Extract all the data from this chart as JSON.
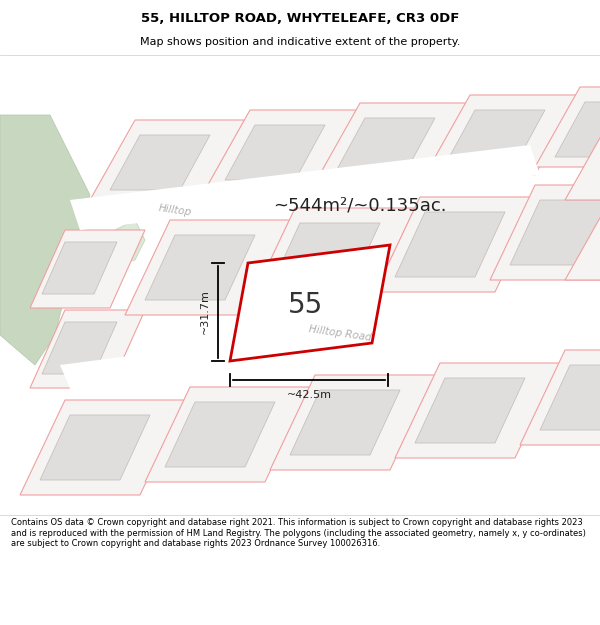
{
  "title_line1": "55, HILLTOP ROAD, WHYTELEAFE, CR3 0DF",
  "title_line2": "Map shows position and indicative extent of the property.",
  "area_text": "~544m²/~0.135ac.",
  "property_number": "55",
  "dim_width": "~42.5m",
  "dim_height": "~31.7m",
  "road_label1": "Hilltop",
  "road_label2": "Hilltop Road",
  "footer_text": "Contains OS data © Crown copyright and database right 2021. This information is subject to Crown copyright and database rights 2023 and is reproduced with the permission of HM Land Registry. The polygons (including the associated geometry, namely x, y co-ordinates) are subject to Crown copyright and database rights 2023 Ordnance Survey 100026316.",
  "map_bg": "#f8f7f5",
  "plot_fill": "#f5f4f2",
  "plot_edge": "#f0a0a0",
  "building_fill": "#e0dedd",
  "building_edge": "#c8c0bc",
  "road_fill": "#ffffff",
  "property_fill": "#ffffff",
  "property_edge": "#cc0000",
  "green_fill": "#c8d8c0",
  "green_edge": "#b0c8a8",
  "header_bg": "#ffffff",
  "footer_bg": "#ffffff",
  "text_dark": "#222222",
  "road_label_color": "#b0b0b0"
}
